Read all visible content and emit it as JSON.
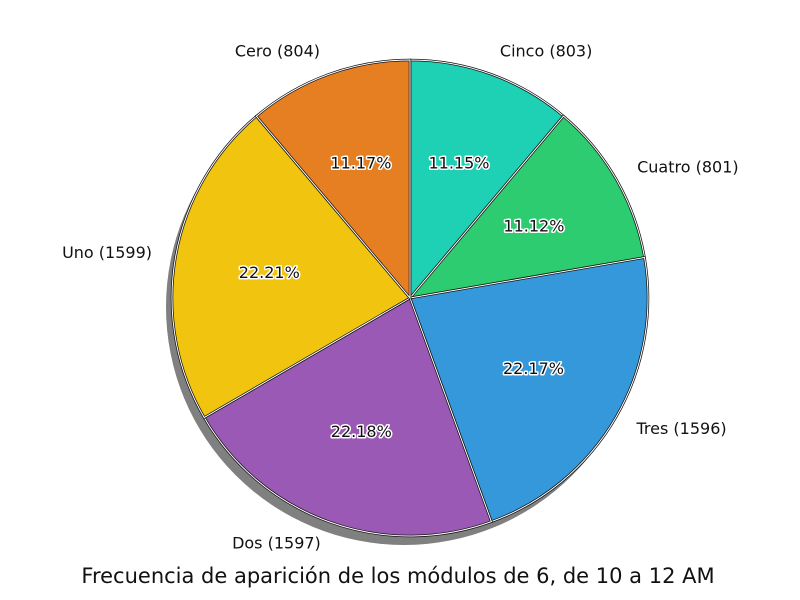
{
  "chart_data": {
    "type": "pie",
    "title": "Frecuencia de aparición de los módulos de 6, de 10 a 12 AM",
    "slices": [
      {
        "label": "Cinco (803)",
        "name": "Cinco",
        "count": 803,
        "percent": "11.15%",
        "color": "#1fd1b4"
      },
      {
        "label": "Cuatro (801)",
        "name": "Cuatro",
        "count": 801,
        "percent": "11.12%",
        "color": "#2ecc71"
      },
      {
        "label": "Tres (1596)",
        "name": "Tres",
        "count": 1596,
        "percent": "22.17%",
        "color": "#3498db"
      },
      {
        "label": "Dos (1597)",
        "name": "Dos",
        "count": 1597,
        "percent": "22.18%",
        "color": "#9b59b6"
      },
      {
        "label": "Uno (1599)",
        "name": "Uno",
        "count": 1599,
        "percent": "22.21%",
        "color": "#f1c40f"
      },
      {
        "label": "Cero (804)",
        "name": "Cero",
        "count": 804,
        "percent": "11.17%",
        "color": "#e67e22"
      }
    ]
  }
}
